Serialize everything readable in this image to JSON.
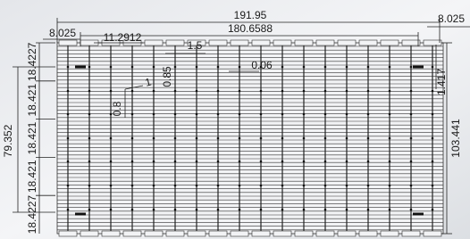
{
  "dimensions": {
    "overall_width": "191.95",
    "inner_width": "180.6588",
    "left_margin": "8.025",
    "pitch": "11.2912",
    "slot": "1.5",
    "gap": "0.06",
    "tab_height": "0.85",
    "tab_small": "1",
    "tab_width": "0.8",
    "right_margin": "8.025",
    "right_offset": "1.417",
    "overall_height": "103.441",
    "inner_height": "79.352",
    "row_pitches": [
      "18.4227",
      "18.421",
      "18.421",
      "18.421",
      "18.4227"
    ]
  }
}
